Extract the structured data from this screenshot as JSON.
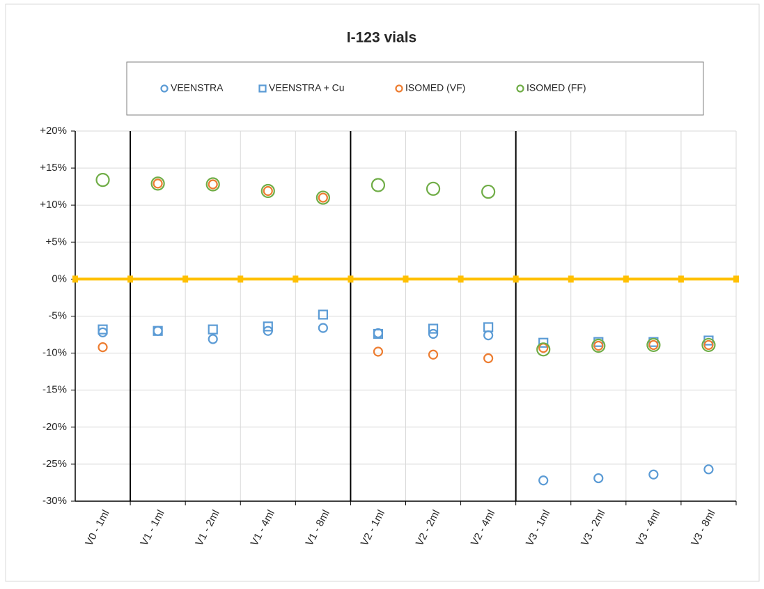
{
  "chart_data": {
    "type": "scatter",
    "title": "I-123 vials",
    "categories": [
      "V0 - 1ml",
      "V1 - 1ml",
      "V1 - 2ml",
      "V1 - 4ml",
      "V1 - 8ml",
      "V2 - 1ml",
      "V2 - 2ml",
      "V2 - 4ml",
      "V3 - 1ml",
      "V3 - 2ml",
      "V3 - 4ml",
      "V3 - 8ml"
    ],
    "series": [
      {
        "name": "VEENSTRA",
        "color": "#5b9bd5",
        "marker": "circle",
        "values": [
          -7.2,
          -7.0,
          -8.1,
          -7.0,
          -6.6,
          -7.3,
          -7.4,
          -7.6,
          -27.2,
          -26.9,
          -26.4,
          -25.7
        ]
      },
      {
        "name": "VEENSTRA + Cu",
        "color": "#5b9bd5",
        "marker": "square",
        "values": [
          -6.8,
          -7.0,
          -6.8,
          -6.4,
          -4.8,
          -7.4,
          -6.7,
          -6.5,
          -8.6,
          -8.5,
          -8.5,
          -8.3
        ]
      },
      {
        "name": "ISOMED (VF)",
        "color": "#ed7d31",
        "marker": "circle",
        "values": [
          -9.2,
          12.9,
          12.8,
          11.9,
          11.0,
          -9.8,
          -10.2,
          -10.7,
          -9.3,
          -9.0,
          -8.9,
          -8.9
        ]
      },
      {
        "name": "ISOMED (FF)",
        "color": "#70ad47",
        "marker": "circle",
        "values": [
          13.4,
          12.9,
          12.8,
          11.9,
          11.0,
          12.7,
          12.2,
          11.8,
          -9.5,
          -9.0,
          -8.9,
          -8.9
        ]
      }
    ],
    "ylim": [
      -30,
      20
    ],
    "yticks": [
      {
        "value": -30,
        "label": "-30%"
      },
      {
        "value": -25,
        "label": "-25%"
      },
      {
        "value": -20,
        "label": "-20%"
      },
      {
        "value": -15,
        "label": "-15%"
      },
      {
        "value": -10,
        "label": "-10%"
      },
      {
        "value": -5,
        "label": "-5%"
      },
      {
        "value": 0,
        "label": "0%"
      },
      {
        "value": 5,
        "label": "+5%"
      },
      {
        "value": 10,
        "label": "+10%"
      },
      {
        "value": 15,
        "label": "+15%"
      },
      {
        "value": 20,
        "label": "+20%"
      }
    ],
    "grid": true,
    "legend": "top"
  }
}
